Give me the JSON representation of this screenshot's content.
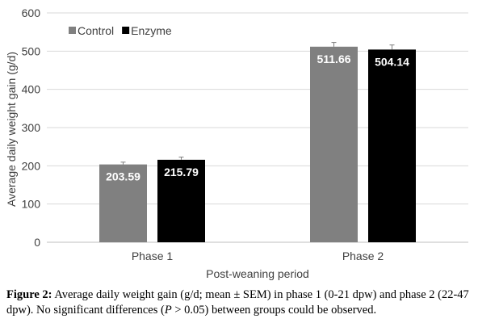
{
  "chart_data": {
    "type": "bar",
    "categories": [
      "Phase 1",
      "Phase 2"
    ],
    "series": [
      {
        "name": "Control",
        "values": [
          203.59,
          511.66
        ],
        "errors": [
          6,
          11
        ],
        "color": "#808080"
      },
      {
        "name": "Enzyme",
        "values": [
          215.79,
          504.14
        ],
        "errors": [
          7,
          12
        ],
        "color": "#000000"
      }
    ],
    "data_labels": [
      [
        "203.59",
        "511.66"
      ],
      [
        "215.79",
        "504.14"
      ]
    ],
    "xlabel": "Post-weaning period",
    "ylabel": "Average daily weight gain (g/d)",
    "ylim": [
      0,
      600
    ],
    "yticks": [
      0,
      100,
      200,
      300,
      400,
      500,
      600
    ],
    "grid": true,
    "legend_position": "top-left",
    "error_bars": true
  },
  "caption": {
    "label": "Figure 2:",
    "text_1": " Average daily weight gain (g/d; mean ± SEM) in phase 1 (0-21 dpw) and phase 2 (22-47 dpw). No significant differences (",
    "italic": "P",
    "text_2": " > 0.05) between groups could be observed."
  }
}
